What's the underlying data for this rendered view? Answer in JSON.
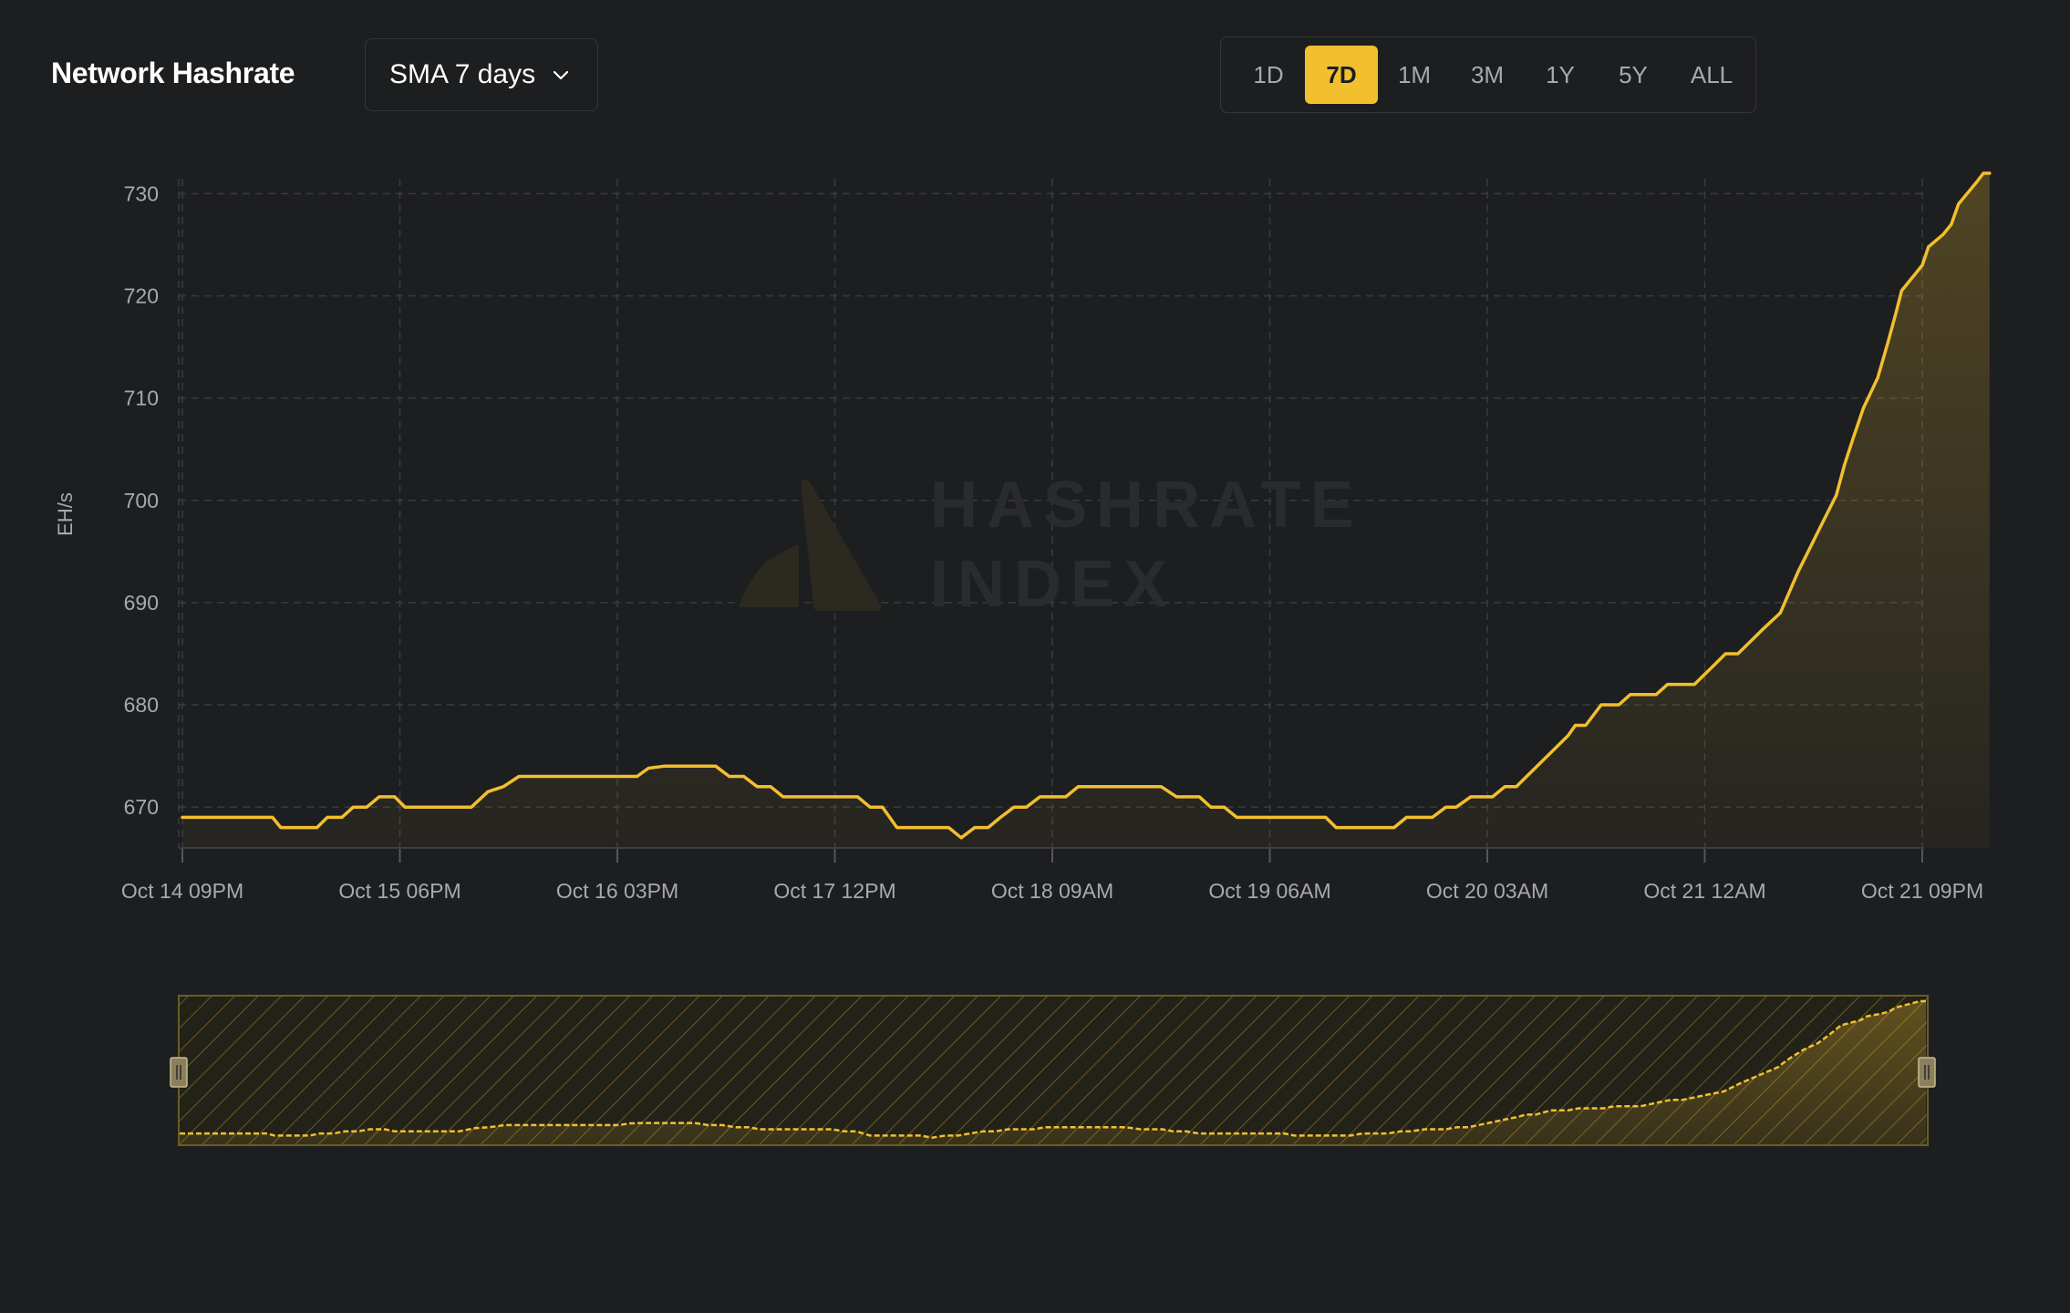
{
  "header": {
    "title": "Network Hashrate",
    "dropdown_label": "SMA 7 days"
  },
  "range_buttons": [
    {
      "label": "1D",
      "active": false
    },
    {
      "label": "7D",
      "active": true
    },
    {
      "label": "1M",
      "active": false
    },
    {
      "label": "3M",
      "active": false
    },
    {
      "label": "1Y",
      "active": false
    },
    {
      "label": "5Y",
      "active": false
    },
    {
      "label": "ALL",
      "active": false
    }
  ],
  "watermark": {
    "line1": "HASHRATE",
    "line2": "INDEX"
  },
  "colors": {
    "accent": "#f2bf2e",
    "background": "#1d1e20",
    "grid": "#3a3b3e",
    "text": "#a7a9ad"
  },
  "chart_data": {
    "type": "area",
    "ylabel": "EH/s",
    "ylim": [
      666,
      732
    ],
    "yticks": [
      670,
      680,
      690,
      700,
      710,
      720,
      730
    ],
    "xticks": [
      "Oct 14 09PM",
      "Oct 15 06PM",
      "Oct 16 03PM",
      "Oct 17 12PM",
      "Oct 18 09AM",
      "Oct 19 06AM",
      "Oct 20 03AM",
      "Oct 21 12AM",
      "Oct 21 09PM"
    ],
    "x_hours_span": [
      0,
      168
    ],
    "grid": true,
    "series": [
      {
        "points": [
          [
            0,
            669
          ],
          [
            8.7,
            669
          ],
          [
            9.5,
            668
          ],
          [
            13,
            668
          ],
          [
            14,
            669
          ],
          [
            15.4,
            669
          ],
          [
            16.5,
            670
          ],
          [
            17.8,
            670
          ],
          [
            19,
            671
          ],
          [
            20.5,
            671
          ],
          [
            21.5,
            670
          ],
          [
            25,
            670
          ],
          [
            27.9,
            670
          ],
          [
            29.5,
            671.5
          ],
          [
            31,
            672
          ],
          [
            32.5,
            673
          ],
          [
            40,
            673
          ],
          [
            43.9,
            673
          ],
          [
            45,
            673.8
          ],
          [
            46.5,
            674
          ],
          [
            46.6,
            674
          ],
          [
            51.5,
            674
          ],
          [
            52.8,
            673
          ],
          [
            54.2,
            673
          ],
          [
            55.5,
            672
          ],
          [
            56.8,
            672
          ],
          [
            58,
            671
          ],
          [
            61,
            671
          ],
          [
            62.5,
            671
          ],
          [
            65.2,
            671
          ],
          [
            66.4,
            670
          ],
          [
            67.6,
            670
          ],
          [
            69,
            668
          ],
          [
            72.5,
            668
          ],
          [
            74,
            668
          ],
          [
            75.2,
            667
          ],
          [
            76.5,
            668
          ],
          [
            77.8,
            668
          ],
          [
            79,
            669
          ],
          [
            80.3,
            670
          ],
          [
            81.5,
            670
          ],
          [
            82.8,
            671
          ],
          [
            85.3,
            671
          ],
          [
            86.5,
            672
          ],
          [
            88,
            672
          ],
          [
            94.5,
            672
          ],
          [
            96,
            671
          ],
          [
            98.2,
            671
          ],
          [
            99.3,
            670
          ],
          [
            100.6,
            670
          ],
          [
            101.8,
            669
          ],
          [
            105,
            669
          ],
          [
            110.4,
            669
          ],
          [
            111.4,
            668
          ],
          [
            117,
            668
          ],
          [
            118.2,
            669
          ],
          [
            120.7,
            669
          ],
          [
            122,
            670
          ],
          [
            123,
            670
          ],
          [
            124.4,
            671
          ],
          [
            126.5,
            671
          ],
          [
            127.7,
            672
          ],
          [
            128.8,
            672
          ],
          [
            131.3,
            674.5
          ],
          [
            133.8,
            677
          ],
          [
            134.5,
            678
          ],
          [
            135.5,
            678
          ],
          [
            137,
            680
          ],
          [
            138.7,
            680
          ],
          [
            139.8,
            681
          ],
          [
            142.3,
            681
          ],
          [
            143.4,
            682
          ],
          [
            146,
            682
          ],
          [
            148,
            684
          ],
          [
            149,
            685
          ],
          [
            150.2,
            685
          ],
          [
            152.5,
            687.3
          ],
          [
            154.3,
            689
          ],
          [
            156,
            693
          ],
          [
            158.7,
            698.5
          ],
          [
            159.7,
            700.5
          ],
          [
            160.5,
            703.5
          ],
          [
            161.3,
            706
          ],
          [
            162.3,
            709
          ],
          [
            163.7,
            712
          ],
          [
            164.7,
            715.5
          ],
          [
            165.5,
            718.5
          ],
          [
            166,
            720.5
          ],
          [
            168,
            723
          ],
          [
            168.6,
            724.8
          ],
          [
            170,
            726
          ],
          [
            170.8,
            727
          ],
          [
            171.5,
            729
          ],
          [
            173.3,
            731.2
          ],
          [
            173.9,
            732
          ],
          [
            174.5,
            732
          ]
        ]
      }
    ]
  }
}
